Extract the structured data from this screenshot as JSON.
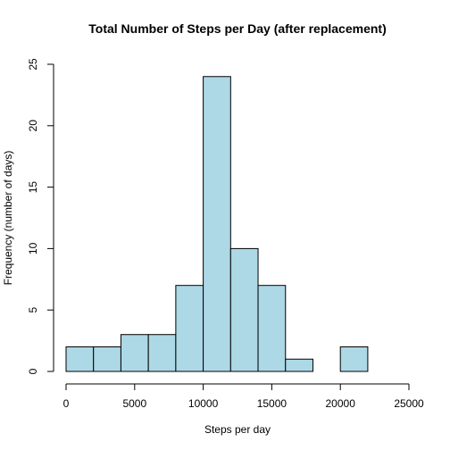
{
  "chart_data": {
    "type": "bar",
    "title": "Total Number of Steps per Day (after replacement)",
    "xlabel": "Steps per day",
    "ylabel": "Frequency (number of days)",
    "bin_edges": [
      0,
      2000,
      4000,
      6000,
      8000,
      10000,
      12000,
      14000,
      16000,
      18000,
      20000,
      22000
    ],
    "values": [
      2,
      2,
      3,
      3,
      7,
      24,
      10,
      7,
      1,
      0,
      2
    ],
    "xlim": [
      0,
      25000
    ],
    "ylim": [
      0,
      25
    ],
    "x_ticks": [
      0,
      5000,
      10000,
      15000,
      20000,
      25000
    ],
    "y_ticks": [
      0,
      5,
      10,
      15,
      20,
      25
    ],
    "bar_color": "#add8e6",
    "grid": false
  }
}
